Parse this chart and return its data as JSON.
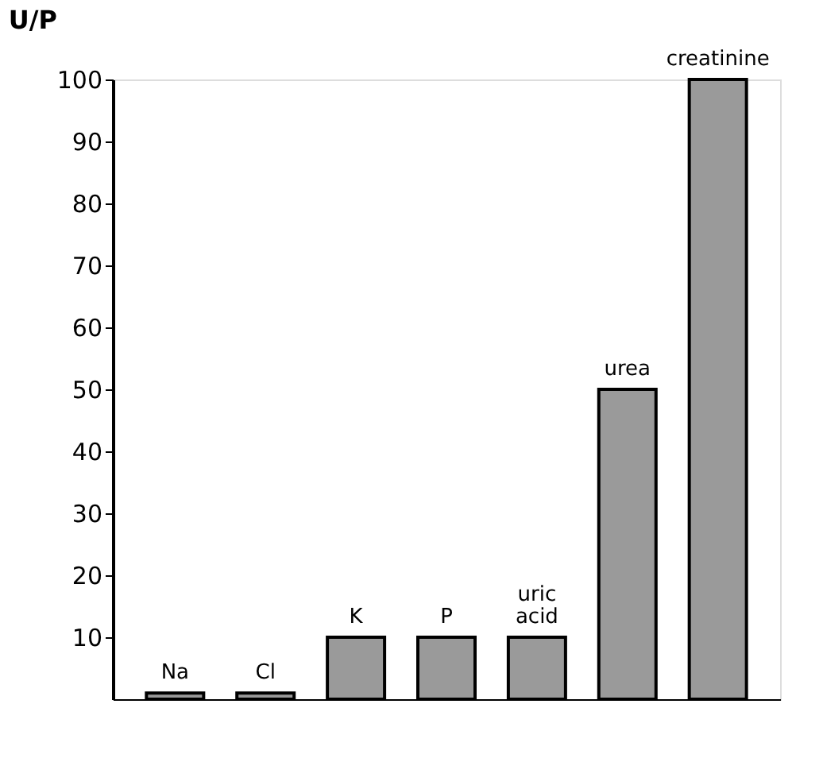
{
  "chart_data": {
    "type": "bar",
    "ylabel": "U/P",
    "categories": [
      "Na",
      "Cl",
      "K",
      "P",
      "uric acid",
      "urea",
      "creatinine"
    ],
    "values": [
      1,
      1,
      10,
      10,
      10,
      50,
      100
    ],
    "color": "#9a9a9a",
    "ylim": [
      0,
      100
    ],
    "yticks": [
      10,
      20,
      30,
      40,
      50,
      60,
      70,
      80,
      90,
      100
    ],
    "tick_labels": "y",
    "grid": false
  }
}
